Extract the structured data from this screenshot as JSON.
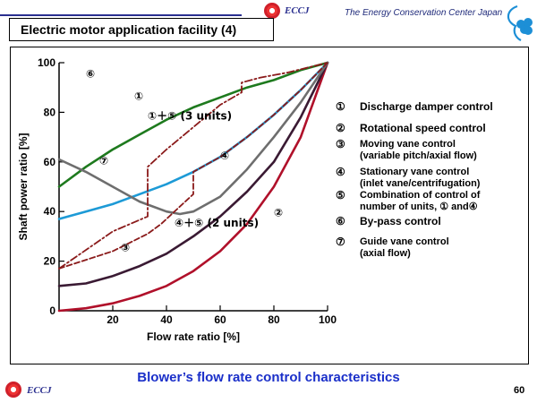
{
  "header": {
    "logo_text": "ECCJ",
    "org_name": "The Energy Conservation Center Japan",
    "slide_title": "Electric motor application facility (4)"
  },
  "legend": [
    {
      "num": "①",
      "text": [
        "Discharge damper control"
      ],
      "big": true
    },
    {
      "num": "②",
      "text": [
        "Rotational speed control"
      ],
      "big": true
    },
    {
      "num": "③",
      "text": [
        "Moving vane control",
        "(variable pitch/axial flow)"
      ],
      "big": false
    },
    {
      "num": "④",
      "text": [
        "Stationary vane control",
        "(inlet vane/centrifugation)"
      ],
      "big": false
    },
    {
      "num": "⑤",
      "text": [
        "Combination of control of",
        "number of units, ① and④"
      ],
      "big": false
    },
    {
      "num": "⑥",
      "text": [
        "By-pass control"
      ],
      "big": true
    },
    {
      "num": "⑦",
      "text": [
        "Guide vane control",
        "(axial flow)"
      ],
      "big": false
    }
  ],
  "chart_data": {
    "type": "line",
    "ylabel": "Shaft power ratio  [%]",
    "xlabel": "Flow rate ratio  [%]",
    "xlim": [
      0,
      100
    ],
    "ylim": [
      0,
      100
    ],
    "xticks": [
      20,
      40,
      60,
      80,
      100
    ],
    "yticks": [
      0,
      20,
      40,
      60,
      80,
      100
    ],
    "grid": false,
    "series": [
      {
        "name": "①",
        "color": "#1e7a1e",
        "dash": "",
        "x": [
          0,
          10,
          20,
          30,
          40,
          50,
          60,
          70,
          80,
          90,
          100
        ],
        "y": [
          50,
          58,
          65,
          71,
          77,
          82,
          86,
          90,
          93,
          97,
          100
        ]
      },
      {
        "name": "②",
        "color": "#b0102a",
        "dash": "",
        "x": [
          0,
          10,
          20,
          30,
          40,
          50,
          60,
          70,
          80,
          90,
          100
        ],
        "y": [
          0,
          1,
          3,
          6,
          10,
          16,
          24,
          35,
          50,
          70,
          100
        ]
      },
      {
        "name": "③",
        "color": "#3a1a33",
        "dash": "",
        "x": [
          0,
          10,
          20,
          30,
          40,
          50,
          60,
          70,
          80,
          90,
          100
        ],
        "y": [
          10,
          11,
          14,
          18,
          23,
          30,
          38,
          48,
          60,
          78,
          100
        ]
      },
      {
        "name": "④",
        "color": "#1d9ad6",
        "dash": "",
        "x": [
          0,
          10,
          20,
          30,
          40,
          50,
          60,
          70,
          80,
          90,
          100
        ],
        "y": [
          37,
          40,
          43,
          47,
          51,
          56,
          62,
          70,
          79,
          89,
          100
        ]
      },
      {
        "name": "⑦",
        "color": "#6e6e6e",
        "dash": "",
        "x": [
          0,
          10,
          20,
          30,
          40,
          45,
          50,
          60,
          70,
          80,
          90,
          100
        ],
        "y": [
          61,
          56,
          50,
          44,
          40,
          39,
          40,
          46,
          57,
          70,
          84,
          100
        ]
      },
      {
        "name": "①＋⑤ (3 units)",
        "color": "#8a1a1a",
        "dash": "8,3,2,3",
        "x": [
          0,
          20,
          33,
          33,
          40,
          50,
          60,
          68,
          68,
          75,
          85,
          100
        ],
        "y": [
          17,
          32,
          38,
          58,
          65,
          74,
          83,
          88,
          92,
          94,
          96,
          100
        ]
      },
      {
        "name": "④＋⑤ (2 units)",
        "color": "#8a1a1a",
        "dash": "6,3",
        "x": [
          0,
          20,
          33,
          38,
          43,
          48,
          50,
          50,
          60,
          70,
          80,
          90,
          100
        ],
        "y": [
          17,
          24,
          31,
          35,
          40,
          45,
          47,
          56,
          62,
          70,
          79,
          89,
          100
        ]
      }
    ],
    "annotations": [
      {
        "text": "⑥",
        "x": 10,
        "y": 94
      },
      {
        "text": "①",
        "x": 28,
        "y": 85
      },
      {
        "text": "①＋⑤ (3 units)",
        "x": 33,
        "y": 77
      },
      {
        "text": "⑦",
        "x": 15,
        "y": 59
      },
      {
        "text": "④",
        "x": 60,
        "y": 61
      },
      {
        "text": "④＋⑤ (2 units)",
        "x": 43,
        "y": 34
      },
      {
        "text": "②",
        "x": 80,
        "y": 38
      },
      {
        "text": "③",
        "x": 23,
        "y": 24
      }
    ]
  },
  "footer": {
    "caption": "Blower’s flow rate control characteristics",
    "page_number": "60"
  }
}
